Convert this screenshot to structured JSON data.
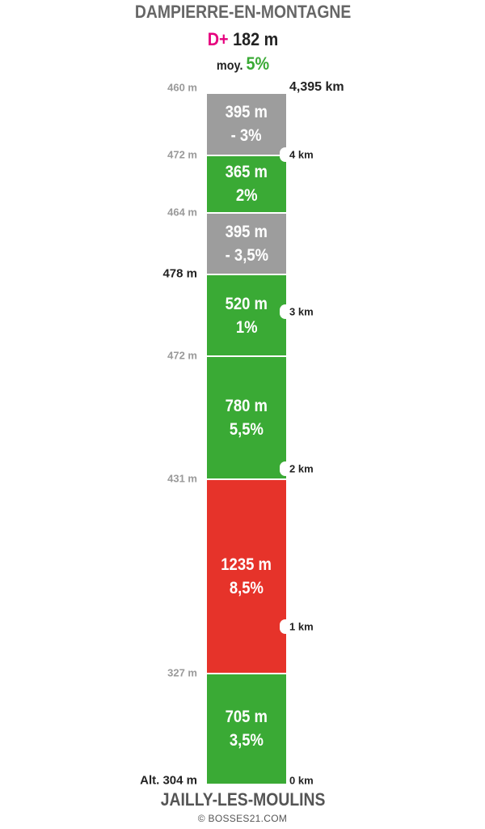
{
  "header": {
    "title": "DAMPIERRE-EN-MONTAGNE",
    "dplus_label": "D+",
    "dplus_value": "182 m",
    "avg_label": "moy.",
    "avg_value": "5%"
  },
  "footer": {
    "start_name": "JAILLY-LES-MOULINS",
    "credit": "© BOSSES21.COM"
  },
  "colors": {
    "descent": "#9d9d9d",
    "easy": "#3aaa35",
    "hard": "#e6332a",
    "dplus": "#e6007e"
  },
  "chart_data": {
    "type": "bar",
    "total_distance_label": "4,395 km",
    "total_distance_km": 4.395,
    "segments": [
      {
        "length": "705 m",
        "length_m": 705,
        "grade": "3,5%",
        "difficulty": "easy"
      },
      {
        "length": "1235 m",
        "length_m": 1235,
        "grade": "8,5%",
        "difficulty": "hard"
      },
      {
        "length": "780 m",
        "length_m": 780,
        "grade": "5,5%",
        "difficulty": "easy"
      },
      {
        "length": "520 m",
        "length_m": 520,
        "grade": "1%",
        "difficulty": "easy"
      },
      {
        "length": "395 m",
        "length_m": 395,
        "grade": "- 3,5%",
        "difficulty": "descent"
      },
      {
        "length": "365 m",
        "length_m": 365,
        "grade": "2%",
        "difficulty": "easy"
      },
      {
        "length": "395 m",
        "length_m": 395,
        "grade": "- 3%",
        "difficulty": "descent"
      }
    ],
    "altitude_labels": [
      {
        "label": "Alt. 304 m",
        "distance_m": 0,
        "emphasis": true
      },
      {
        "label": "327 m",
        "distance_m": 705,
        "emphasis": false
      },
      {
        "label": "431 m",
        "distance_m": 1940,
        "emphasis": false
      },
      {
        "label": "472 m",
        "distance_m": 2720,
        "emphasis": false
      },
      {
        "label": "478 m",
        "distance_m": 3240,
        "emphasis": true
      },
      {
        "label": "464 m",
        "distance_m": 3635,
        "emphasis": false
      },
      {
        "label": "472 m",
        "distance_m": 4000,
        "emphasis": false
      },
      {
        "label": "460 m",
        "distance_m": 4395,
        "emphasis": false
      }
    ],
    "km_markers": [
      {
        "label": "0 km",
        "distance_m": 0,
        "notch": false
      },
      {
        "label": "1 km",
        "distance_m": 1000,
        "notch": true
      },
      {
        "label": "2 km",
        "distance_m": 2000,
        "notch": true
      },
      {
        "label": "3 km",
        "distance_m": 3000,
        "notch": true
      },
      {
        "label": "4 km",
        "distance_m": 4000,
        "notch": true
      }
    ]
  }
}
